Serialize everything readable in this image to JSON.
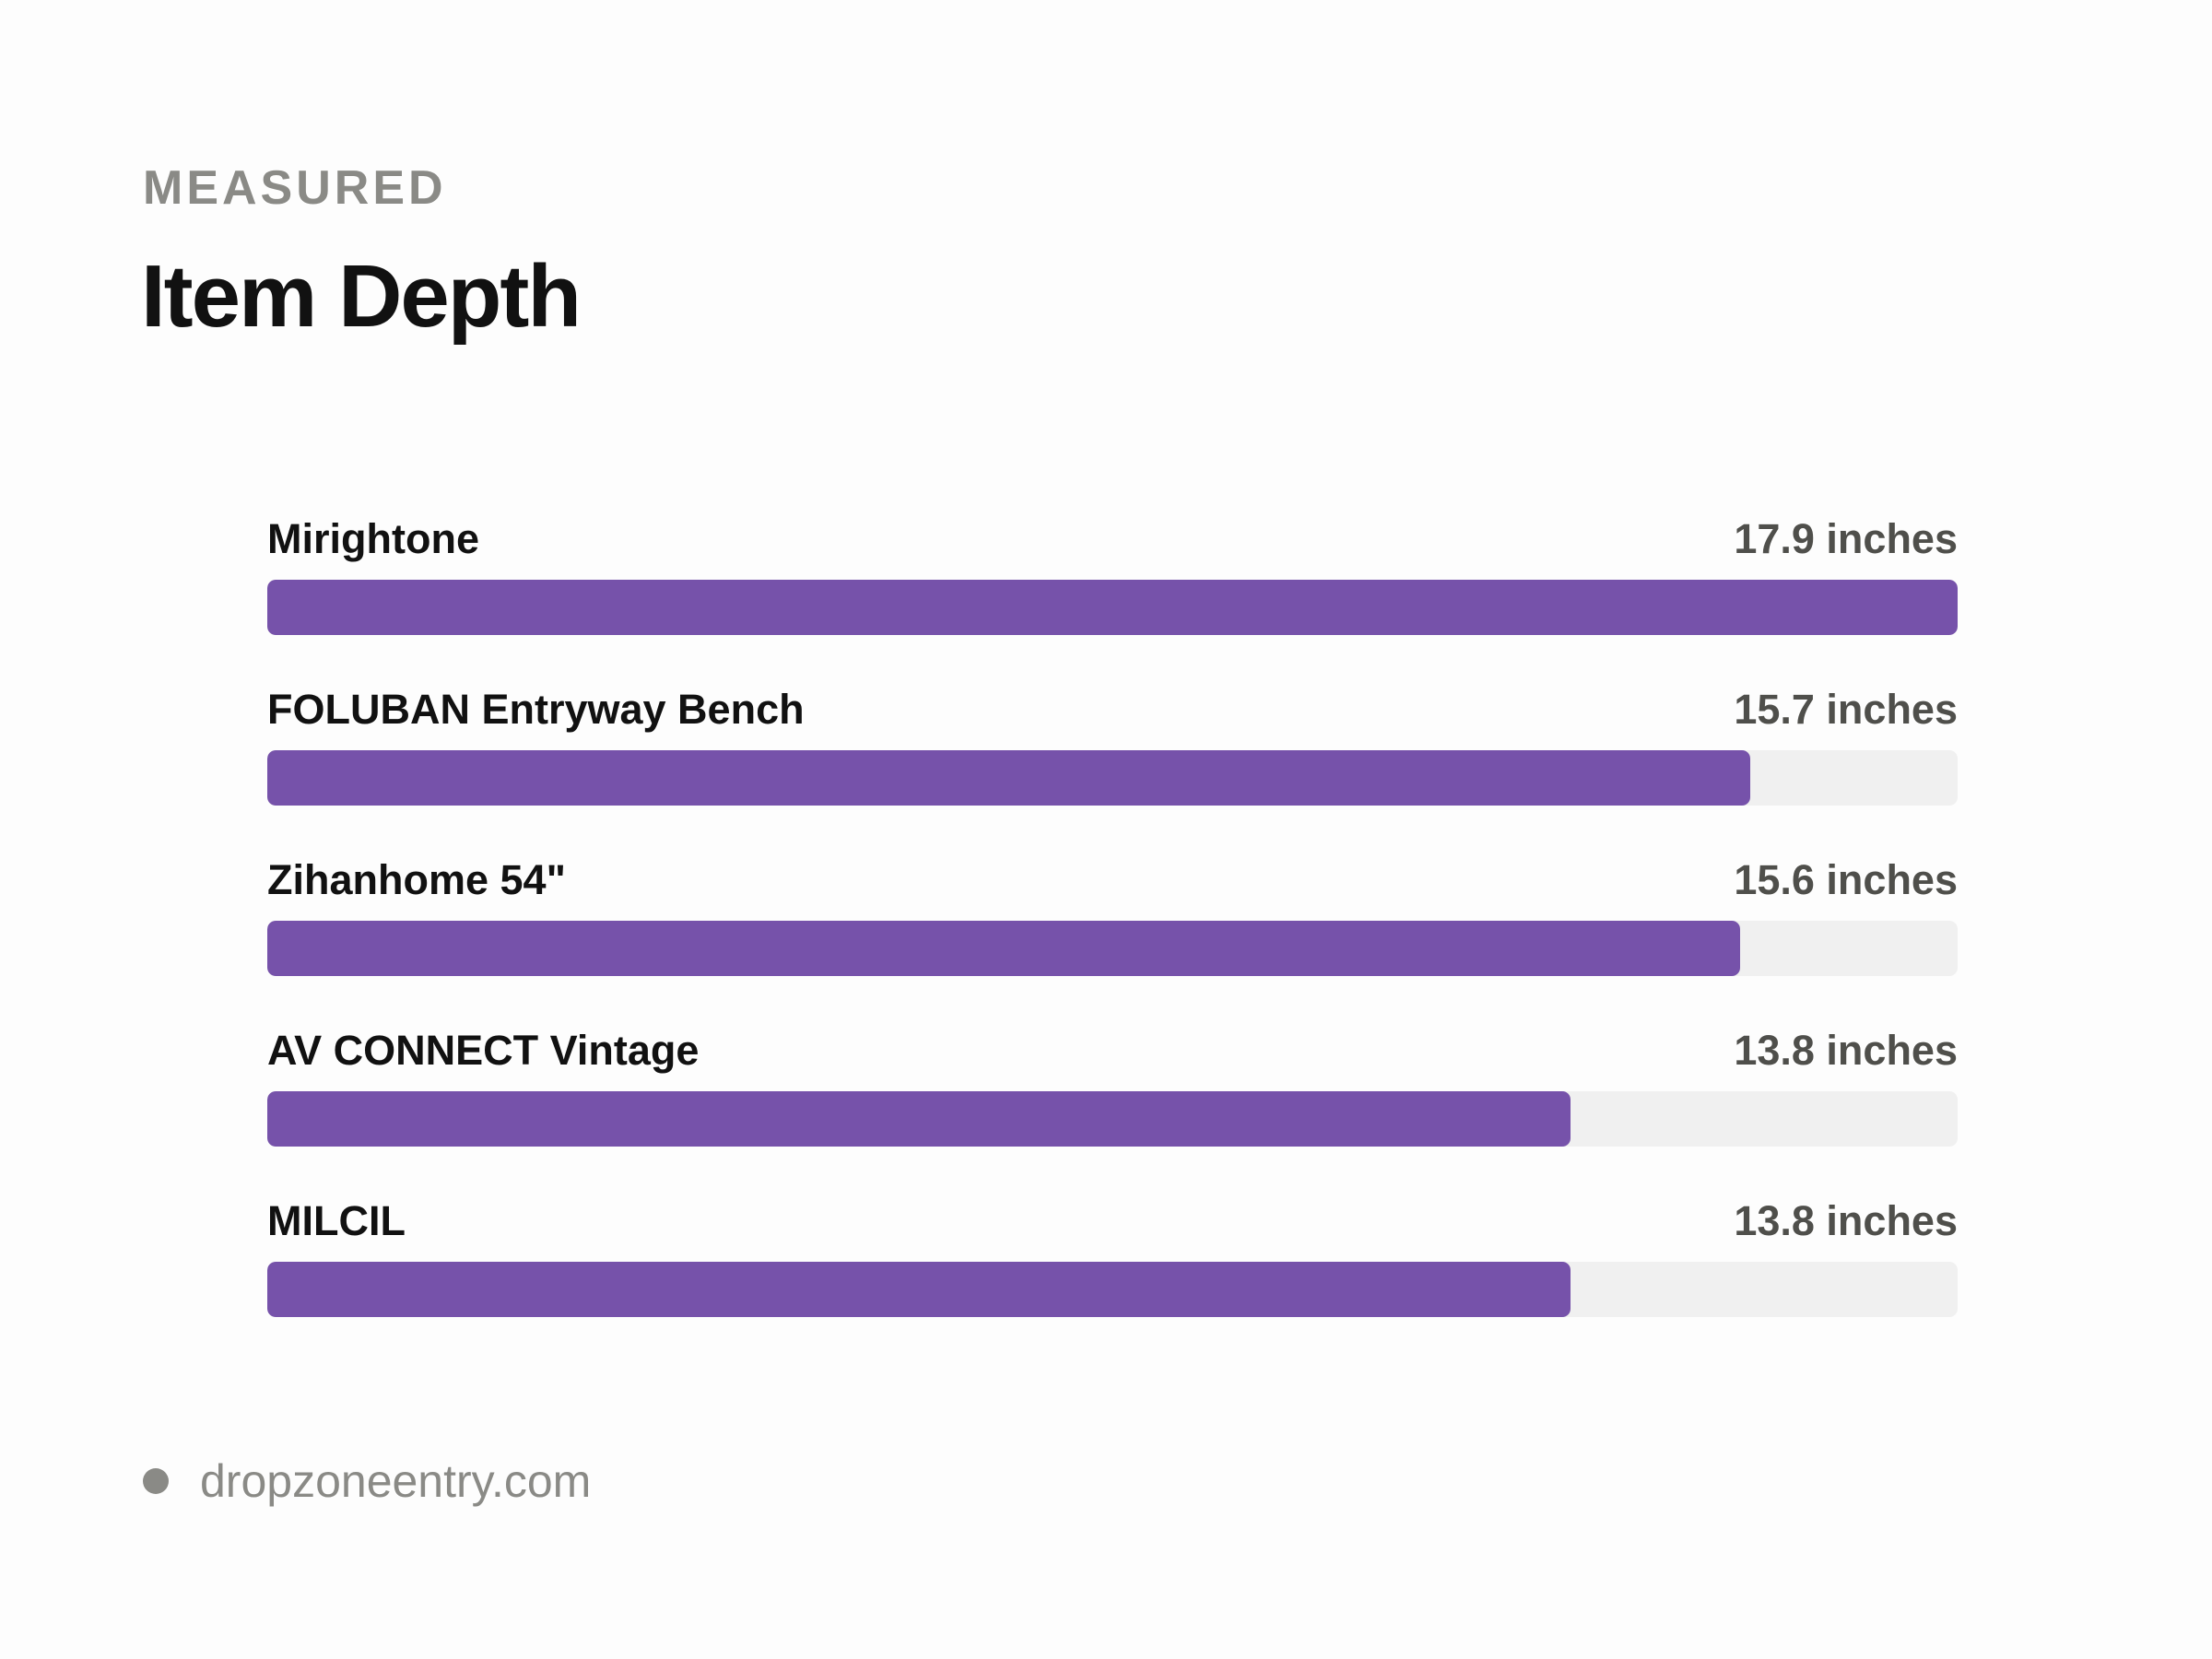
{
  "header": {
    "eyebrow": "MEASURED",
    "title": "Item Depth"
  },
  "colors": {
    "bar": "#7652aa",
    "track": "#f0f0f0"
  },
  "chart_data": {
    "type": "bar",
    "orientation": "horizontal",
    "title": "Item Depth",
    "unit": "inches",
    "xlim": [
      0,
      17.9
    ],
    "categories": [
      "Mirightone",
      "FOLUBAN Entryway Bench",
      "Zihanhome 54\"",
      "AV CONNECT Vintage",
      "MILCIL"
    ],
    "values": [
      17.9,
      15.7,
      15.6,
      13.8,
      13.8
    ],
    "value_labels": [
      "17.9 inches",
      "15.7 inches",
      "15.6 inches",
      "13.8 inches",
      "13.8 inches"
    ]
  },
  "footer": {
    "icon": "dot-icon",
    "source": "dropzoneentry.com"
  }
}
